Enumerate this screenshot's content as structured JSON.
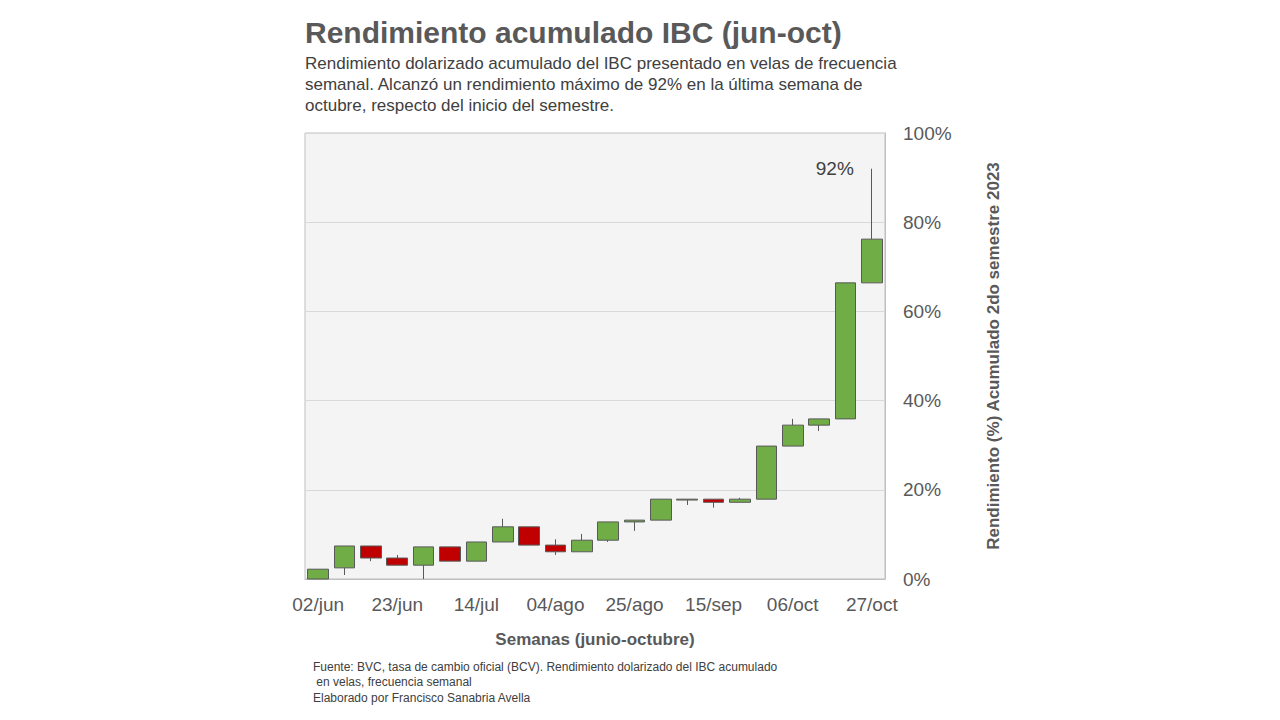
{
  "chart_data": {
    "type": "candlestick",
    "title": "Rendimiento acumulado IBC (jun-oct)",
    "subtitle": "Rendimiento dolarizado acumulado del IBC presentado en velas de frecuencia semanal. Alcanzó un rendimiento máximo de 92% en la última semana de octubre, respecto del inicio del semestre.",
    "x_label": "Semanas (junio-octubre)",
    "y_label": "Rendimiento (%) Acumulado 2do semestre 2023",
    "categories": [
      "02/jun",
      null,
      null,
      "23/jun",
      null,
      null,
      "14/jul",
      null,
      null,
      "04/ago",
      null,
      null,
      "25/ago",
      null,
      null,
      "15/sep",
      null,
      null,
      "06/oct",
      null,
      null,
      "27/oct"
    ],
    "open": [
      0,
      2.5,
      7.4,
      4.7,
      3.1,
      7.2,
      4.0,
      8.3,
      11.7,
      7.6,
      6.1,
      8.7,
      12.8,
      13.2,
      17.7,
      17.9,
      17.2,
      17.9,
      29.8,
      34.5,
      35.9,
      66.4
    ],
    "close": [
      2.2,
      7.4,
      4.7,
      3.1,
      7.2,
      4.0,
      8.3,
      11.7,
      7.6,
      6.1,
      8.7,
      12.8,
      13.2,
      17.9,
      17.9,
      17.2,
      17.9,
      29.8,
      34.5,
      35.9,
      66.4,
      76.2
    ],
    "low": [
      0,
      0.9,
      4.0,
      3.1,
      0,
      4.0,
      4.0,
      8.3,
      7.6,
      5.4,
      6.1,
      8.3,
      10.8,
      13.2,
      16.6,
      16.0,
      17.2,
      17.9,
      29.8,
      33.2,
      35.9,
      66.4
    ],
    "high": [
      2.2,
      7.4,
      7.4,
      5.4,
      7.2,
      7.2,
      8.3,
      13.5,
      11.7,
      8.9,
      10.1,
      12.8,
      13.2,
      17.9,
      17.9,
      17.9,
      18.2,
      29.8,
      35.9,
      35.9,
      66.4,
      92
    ],
    "colors": [
      "#70ad47",
      "#70ad47",
      "#c00000",
      "#c00000",
      "#70ad47",
      "#c00000",
      "#70ad47",
      "#70ad47",
      "#c00000",
      "#c00000",
      "#70ad47",
      "#70ad47",
      "#70ad47",
      "#70ad47",
      "#70ad47",
      "#c00000",
      "#70ad47",
      "#70ad47",
      "#70ad47",
      "#70ad47",
      "#70ad47",
      "#70ad47"
    ],
    "ylim": [
      0,
      100
    ],
    "yticks": [
      {
        "value": 0,
        "label": "0%"
      },
      {
        "value": 20,
        "label": "20%"
      },
      {
        "value": 40,
        "label": "40%"
      },
      {
        "value": 60,
        "label": "60%"
      },
      {
        "value": 80,
        "label": "80%"
      },
      {
        "value": 100,
        "label": "100%"
      }
    ],
    "grid": true,
    "annotations": [
      {
        "text": "92%",
        "x": "27/oct",
        "y": 92
      }
    ],
    "source": "Fuente: BVC, tasa de cambio oficial (BCV). Rendimiento dolarizado del IBC acumulado en velas, frecuencia semanal",
    "credit": "Elaborado por Francisco Sanabria Avella"
  }
}
